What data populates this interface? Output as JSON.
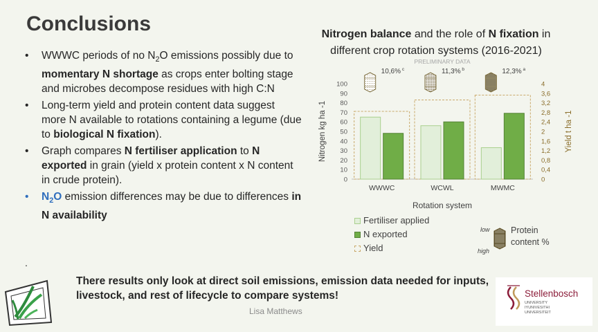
{
  "slide": {
    "title": "Conclusions",
    "author": "Lisa Matthews",
    "stray_mark": ".",
    "bottom_text": "There results only look at direct soil emissions, emission data needed for inputs, livestock, and rest of lifecycle to compare systems!"
  },
  "bullets": [
    {
      "parts": [
        {
          "t": "WWWC periods of no N"
        },
        {
          "t": "2",
          "sub": true
        },
        {
          "t": "O emissions possibly due to "
        },
        {
          "t": "momentary N shortage",
          "b": true
        },
        {
          "t": " as crops enter bolting stage and microbes decompose residues with high C:N"
        }
      ]
    },
    {
      "parts": [
        {
          "t": "Long-term yield and protein content data suggest more N available to rotations containing a legume (due to "
        },
        {
          "t": "biological N fixation",
          "b": true
        },
        {
          "t": ")."
        }
      ]
    },
    {
      "parts": [
        {
          "t": "Graph compares "
        },
        {
          "t": "N fertiliser application",
          "b": true
        },
        {
          "t": " to "
        },
        {
          "t": "N exported",
          "b": true
        },
        {
          "t": " in grain (yield x protein content x N content in crude protein)."
        }
      ]
    },
    {
      "blue": true,
      "parts": [
        {
          "t": "N",
          "blue": true
        },
        {
          "t": "2",
          "sub": true,
          "blue": true
        },
        {
          "t": "O",
          "blue": true
        },
        {
          "t": " emission differences may be due to differences "
        },
        {
          "t": "in N availability",
          "b": true
        }
      ]
    }
  ],
  "chart_title": {
    "parts": [
      {
        "t": "Nitrogen balance",
        "b": true
      },
      {
        "t": " and the role of "
      },
      {
        "t": "N fixation",
        "b": true
      },
      {
        "t": " in different crop rotation systems (2016-2021)"
      }
    ]
  },
  "chart_data": {
    "type": "bar",
    "annotation": "PRELIMINARY DATA",
    "categories": [
      "WWWC",
      "WCWL",
      "MWMC"
    ],
    "xlabel": "Rotation system",
    "ylabel": "Nitrogen kg ha -1",
    "y2label": "Yield t ha -1",
    "ylim": [
      0,
      100
    ],
    "y2lim": [
      0,
      4
    ],
    "yticks": [
      0,
      10,
      20,
      30,
      40,
      50,
      60,
      70,
      80,
      90,
      100
    ],
    "y2ticks": [
      "0",
      "0,4",
      "0,8",
      "1,2",
      "1,6",
      "2",
      "2,4",
      "2,8",
      "3,2",
      "3,6",
      "4"
    ],
    "series": [
      {
        "name": "Fertiliser applied",
        "values": [
          65,
          56,
          33
        ],
        "color": "#e2efda"
      },
      {
        "name": "N exported",
        "values": [
          48,
          60,
          69
        ],
        "color": "#70ad47"
      }
    ],
    "yield": {
      "name": "Yield",
      "values": [
        2.84,
        3.32,
        3.52
      ],
      "color": "#c9a96a"
    },
    "protein": [
      {
        "label": "10,6%",
        "letter": "c"
      },
      {
        "label": "11,3%",
        "letter": "b"
      },
      {
        "label": "12,3%",
        "letter": "a"
      }
    ],
    "protein_legend": {
      "low": "low",
      "high": "high",
      "label1": "Protein",
      "label2": "content %"
    }
  }
}
